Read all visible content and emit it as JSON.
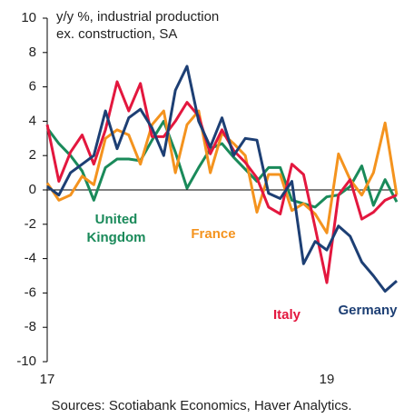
{
  "chart_data": {
    "type": "line",
    "title": [
      "y/y %, industrial production",
      "ex. construction, SA"
    ],
    "source": "Sources: Scotiabank Economics, Haver Analytics.",
    "categories": [
      "17",
      null,
      null,
      null,
      null,
      null,
      null,
      null,
      null,
      null,
      null,
      null,
      null,
      null,
      null,
      null,
      null,
      null,
      null,
      null,
      null,
      null,
      null,
      null,
      "19",
      null,
      null,
      null,
      null,
      null,
      null
    ],
    "ylim": [
      -10,
      10
    ],
    "yticks": [
      -10,
      -8,
      -6,
      -4,
      -2,
      0,
      2,
      4,
      6,
      8,
      10
    ],
    "series": [
      {
        "name": [
          "United",
          "Kingdom"
        ],
        "color": "#1a8a5a",
        "values": [
          3.6,
          2.7,
          2.0,
          1.1,
          -0.6,
          1.3,
          1.8,
          1.8,
          1.7,
          2.9,
          4.0,
          2.2,
          0.1,
          1.3,
          2.4,
          2.7,
          1.9,
          1.2,
          0.5,
          1.3,
          1.3,
          -0.6,
          -0.8,
          -1.0,
          -0.4,
          -0.3,
          0.2,
          1.4,
          -0.9,
          0.6,
          -0.7
        ]
      },
      {
        "name": "France",
        "color": "#f4931e",
        "values": [
          0.4,
          -0.6,
          -0.3,
          0.8,
          0.3,
          3.0,
          3.5,
          3.2,
          1.5,
          3.8,
          4.6,
          1.0,
          3.8,
          4.6,
          1.0,
          3.3,
          2.7,
          2.0,
          -1.3,
          0.9,
          0.9,
          -1.2,
          -0.8,
          -1.4,
          -2.5,
          2.1,
          0.6,
          -0.3,
          1.0,
          3.9,
          -0.3
        ]
      },
      {
        "name": "Italy",
        "color": "#e3173e",
        "values": [
          3.8,
          0.5,
          2.2,
          3.2,
          1.5,
          3.5,
          6.3,
          4.6,
          6.2,
          3.1,
          3.1,
          4.0,
          5.1,
          4.3,
          2.1,
          3.5,
          2.3,
          1.6,
          0.7,
          -1.0,
          -1.4,
          1.5,
          0.9,
          -2.2,
          -5.4,
          -0.3,
          0.6,
          -1.7,
          -1.3,
          -0.6,
          -0.3
        ]
      },
      {
        "name": "Germany",
        "color": "#1d3f74",
        "values": [
          0.2,
          -0.3,
          1.0,
          1.5,
          2.0,
          4.6,
          2.4,
          4.2,
          4.7,
          3.6,
          2.0,
          5.8,
          7.2,
          4.0,
          2.5,
          4.2,
          2.0,
          3.0,
          2.9,
          -0.2,
          -0.5,
          0.5,
          -4.3,
          -3.0,
          -3.5,
          -2.1,
          -2.7,
          -4.2,
          -5.0,
          -5.9,
          -5.3
        ]
      }
    ]
  }
}
